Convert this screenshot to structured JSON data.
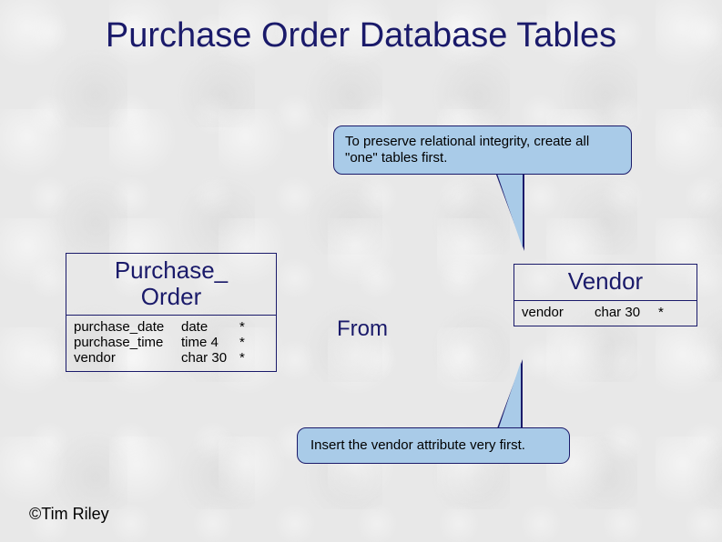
{
  "colors": {
    "title_text": "#1a1a6a",
    "border": "#1a1a6a",
    "callout_fill": "#a9cbe8",
    "background": "#e8e8e8",
    "body_text": "#000000"
  },
  "fonts": {
    "title_size_pt": 28,
    "entity_header_size_pt": 20,
    "body_size_pt": 11,
    "rel_label_size_pt": 18
  },
  "title": "Purchase Order Database Tables",
  "callouts": {
    "top": "To preserve relational integrity, create all \"one\" tables first.",
    "bottom": "Insert the vendor attribute very first."
  },
  "entities": {
    "purchase_order": {
      "name_line1": "Purchase_",
      "name_line2": "Order",
      "fields": [
        {
          "name": "purchase_date",
          "type": "date",
          "req": "*"
        },
        {
          "name": "purchase_time",
          "type": "time 4",
          "req": "*"
        },
        {
          "name": "vendor",
          "type": "char 30",
          "req": "*"
        }
      ]
    },
    "vendor": {
      "name": "Vendor",
      "fields": [
        {
          "name": "vendor",
          "type": "char 30",
          "req": "*"
        }
      ]
    }
  },
  "relationship": {
    "label": "From"
  },
  "copyright": "©Tim Riley"
}
